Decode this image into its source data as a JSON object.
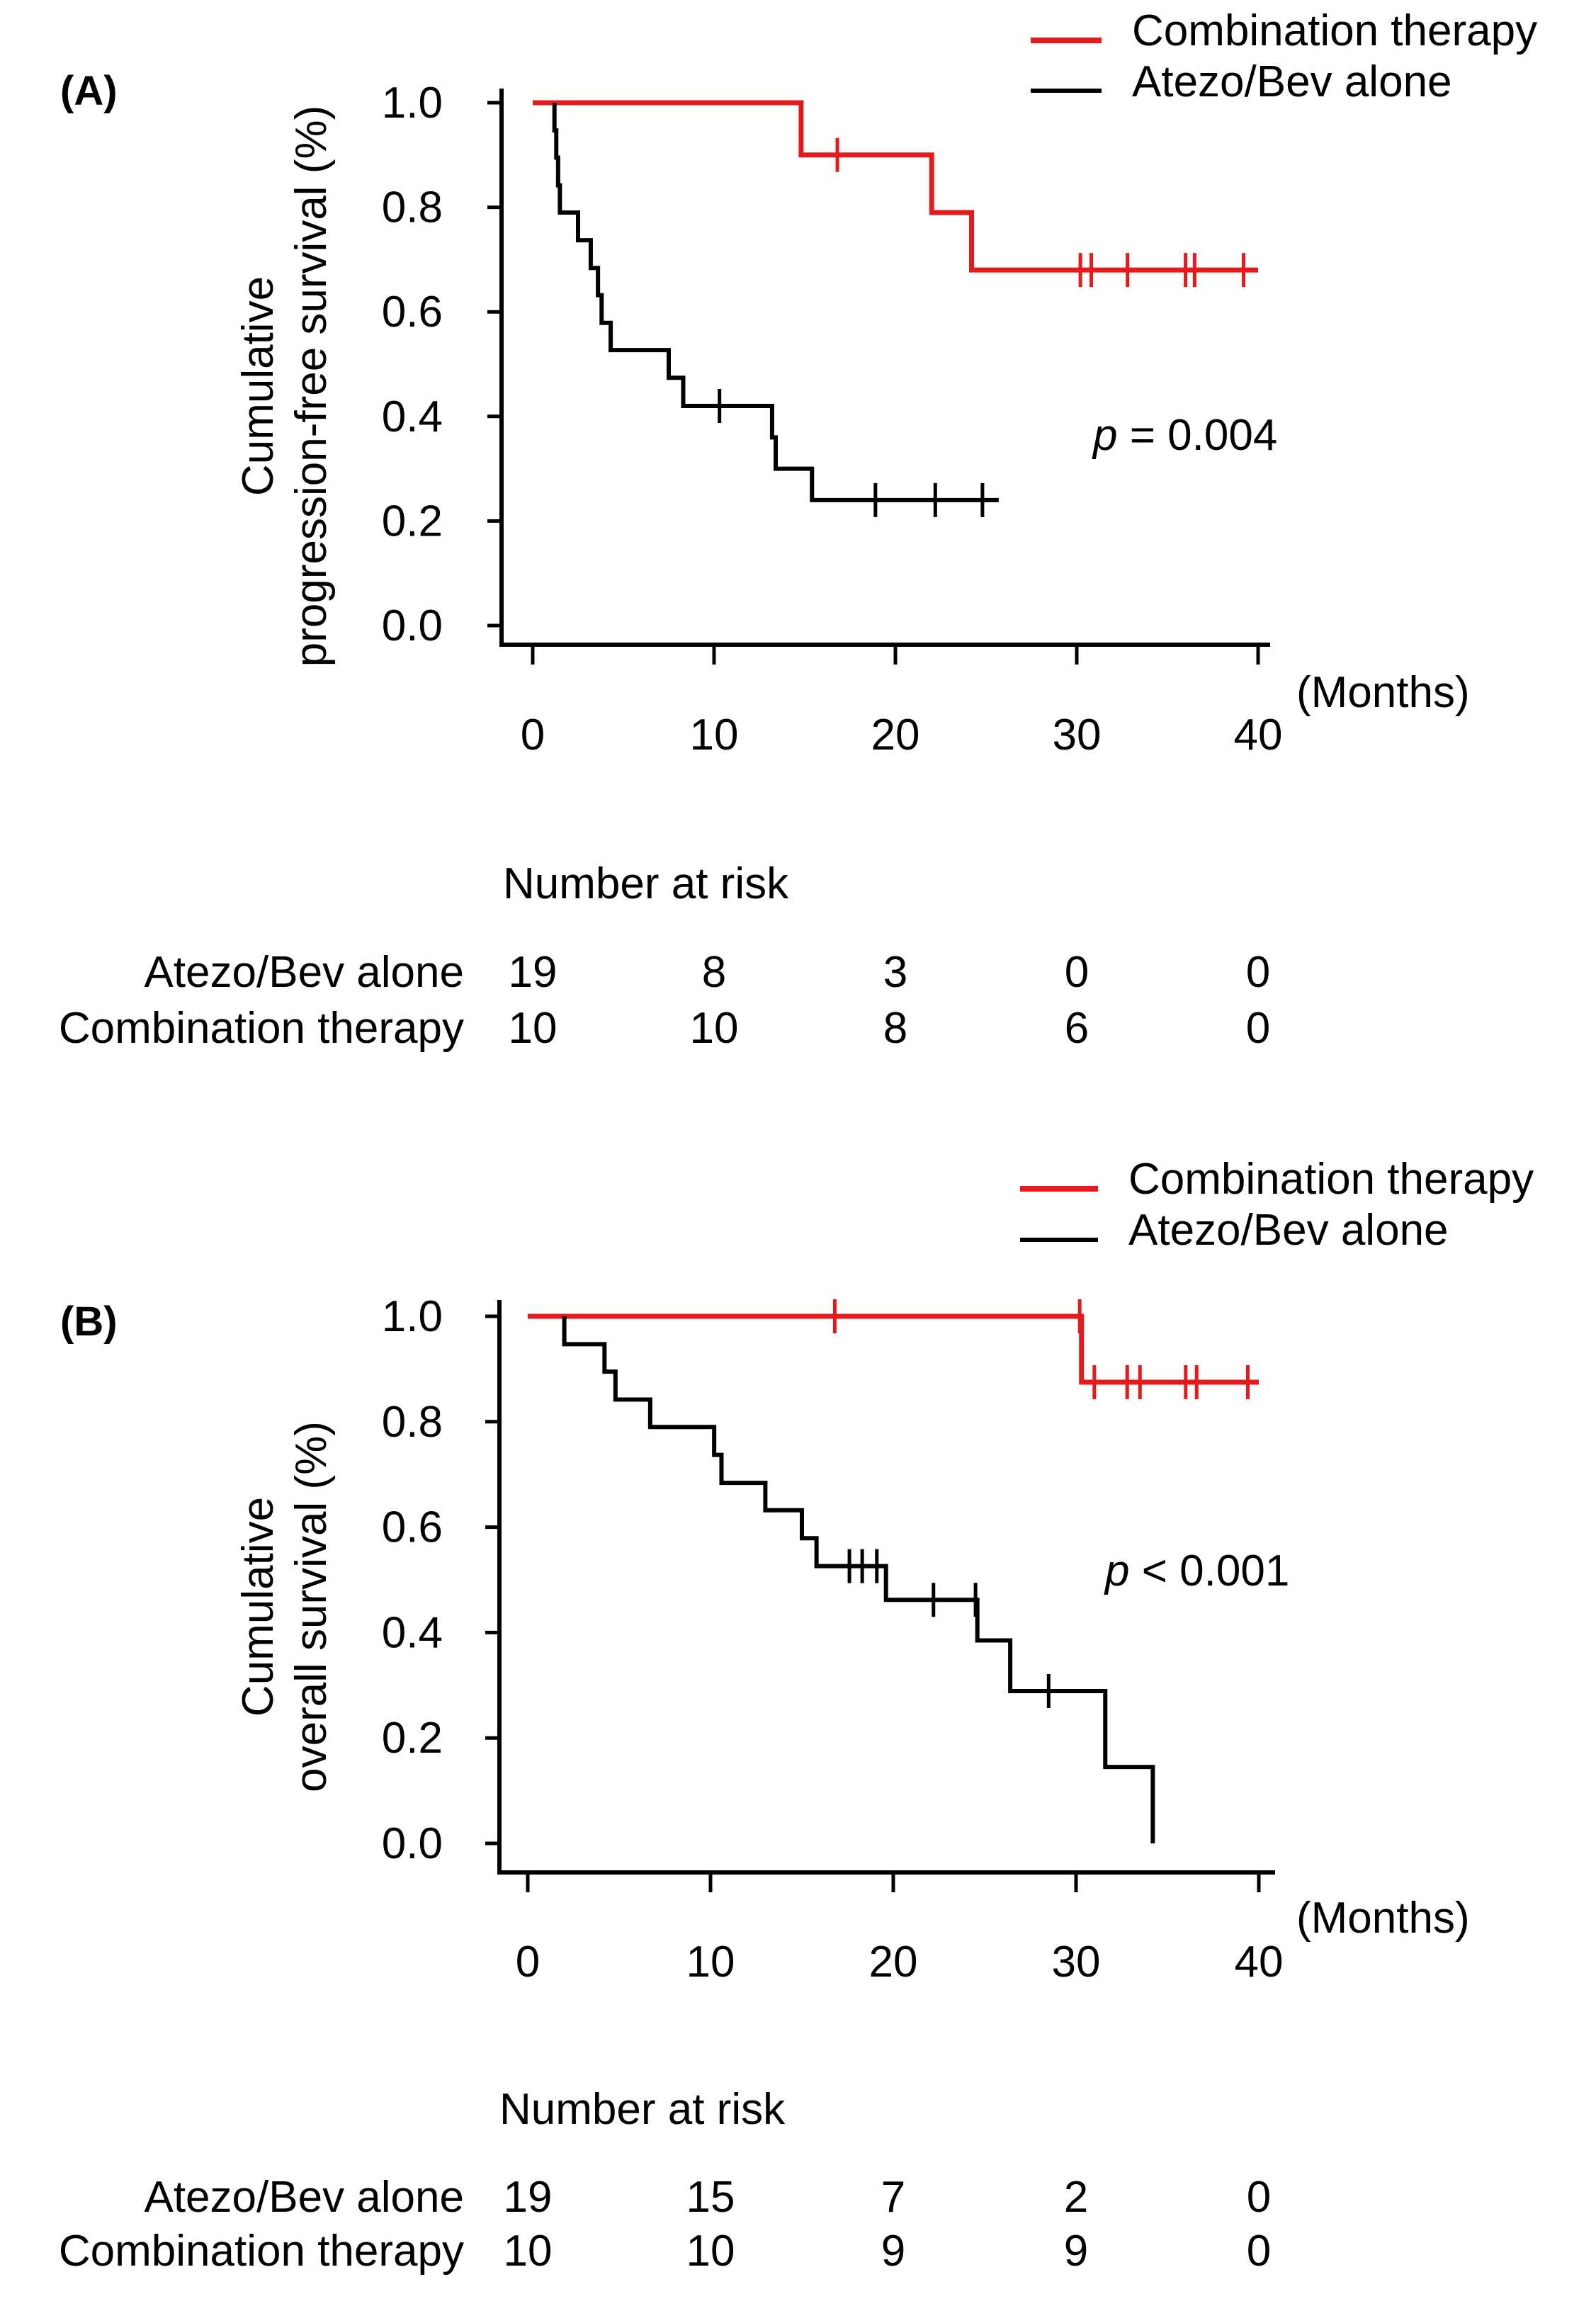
{
  "chart_data": [
    {
      "type": "line",
      "panel_label": "(A)",
      "ylabel": [
        "Cumulative",
        "progression-free survival (%)"
      ],
      "xlabel": "(Months)",
      "xlim": [
        0,
        40
      ],
      "ylim": [
        0,
        1
      ],
      "x_ticks": [
        0,
        10,
        20,
        30,
        40
      ],
      "y_ticks": [
        "0.0",
        "0.2",
        "0.4",
        "0.6",
        "0.8",
        "1.0"
      ],
      "legend_position": "top-right",
      "p_value": {
        "prefix": "p",
        "text": " = 0.004"
      },
      "series": [
        {
          "name": "Combination therapy",
          "color": "#e41a1c",
          "steps": [
            [
              0,
              1.0
            ],
            [
              14.8,
              0.9
            ],
            [
              22.0,
              0.79
            ],
            [
              24.2,
              0.68
            ]
          ],
          "end_x": 40,
          "censor_x": [
            16.8,
            30.2,
            30.8,
            32.8,
            36.0,
            36.5,
            39.2
          ]
        },
        {
          "name": "Atezo/Bev alone",
          "color": "#000000",
          "steps": [
            [
              0,
              1.0
            ],
            [
              1.2,
              0.947
            ],
            [
              1.3,
              0.895
            ],
            [
              1.4,
              0.842
            ],
            [
              1.5,
              0.79
            ],
            [
              2.5,
              0.737
            ],
            [
              3.2,
              0.684
            ],
            [
              3.6,
              0.632
            ],
            [
              3.8,
              0.579
            ],
            [
              4.3,
              0.527
            ],
            [
              7.5,
              0.474
            ],
            [
              8.3,
              0.42
            ],
            [
              13.2,
              0.36
            ],
            [
              13.4,
              0.3
            ],
            [
              15.4,
              0.24
            ]
          ],
          "start_x": 1.2,
          "end_x": 25.7,
          "censor_x": [
            10.3,
            18.9,
            22.2,
            24.8
          ]
        }
      ],
      "risk_table": {
        "title": "Number at risk",
        "rows": [
          {
            "label": "Atezo/Bev alone",
            "values": [
              "19",
              "8",
              "3",
              "0",
              "0"
            ]
          },
          {
            "label": "Combination therapy",
            "values": [
              "10",
              "10",
              "8",
              "6",
              "0"
            ]
          }
        ]
      }
    },
    {
      "type": "line",
      "panel_label": "(B)",
      "ylabel": [
        "Cumulative",
        "overall survival (%)"
      ],
      "xlabel": "(Months)",
      "xlim": [
        0,
        40
      ],
      "ylim": [
        0,
        1
      ],
      "x_ticks": [
        0,
        10,
        20,
        30,
        40
      ],
      "y_ticks": [
        "0.0",
        "0.2",
        "0.4",
        "0.6",
        "0.8",
        "1.0"
      ],
      "legend_position": "top-right",
      "p_value": {
        "prefix": "p",
        "text": " < 0.001"
      },
      "series": [
        {
          "name": "Combination therapy",
          "color": "#e41a1c",
          "steps": [
            [
              0,
              1.0
            ],
            [
              30.3,
              0.875
            ]
          ],
          "end_x": 40,
          "censor_x": [
            16.8,
            30.2,
            31.0,
            32.8,
            33.5,
            36.0,
            36.6,
            39.4
          ]
        },
        {
          "name": "Atezo/Bev alone",
          "color": "#000000",
          "steps": [
            [
              0,
              1.0
            ],
            [
              2.0,
              0.947
            ],
            [
              4.2,
              0.895
            ],
            [
              4.8,
              0.842
            ],
            [
              6.7,
              0.79
            ],
            [
              10.2,
              0.737
            ],
            [
              10.6,
              0.684
            ],
            [
              13.0,
              0.632
            ],
            [
              15.0,
              0.579
            ],
            [
              15.8,
              0.526
            ],
            [
              19.6,
              0.462
            ],
            [
              24.6,
              0.385
            ],
            [
              26.4,
              0.289
            ],
            [
              31.6,
              0.145
            ],
            [
              34.2,
              0.0
            ]
          ],
          "start_x": 2.0,
          "end_x": 34.2,
          "censor_x": [
            17.6,
            18.3,
            19.1,
            22.2,
            24.5,
            28.5
          ]
        }
      ],
      "risk_table": {
        "title": "Number at risk",
        "rows": [
          {
            "label": "Atezo/Bev alone",
            "values": [
              "19",
              "15",
              "7",
              "2",
              "0"
            ]
          },
          {
            "label": "Combination therapy",
            "values": [
              "10",
              "10",
              "9",
              "9",
              "0"
            ]
          }
        ]
      }
    }
  ]
}
